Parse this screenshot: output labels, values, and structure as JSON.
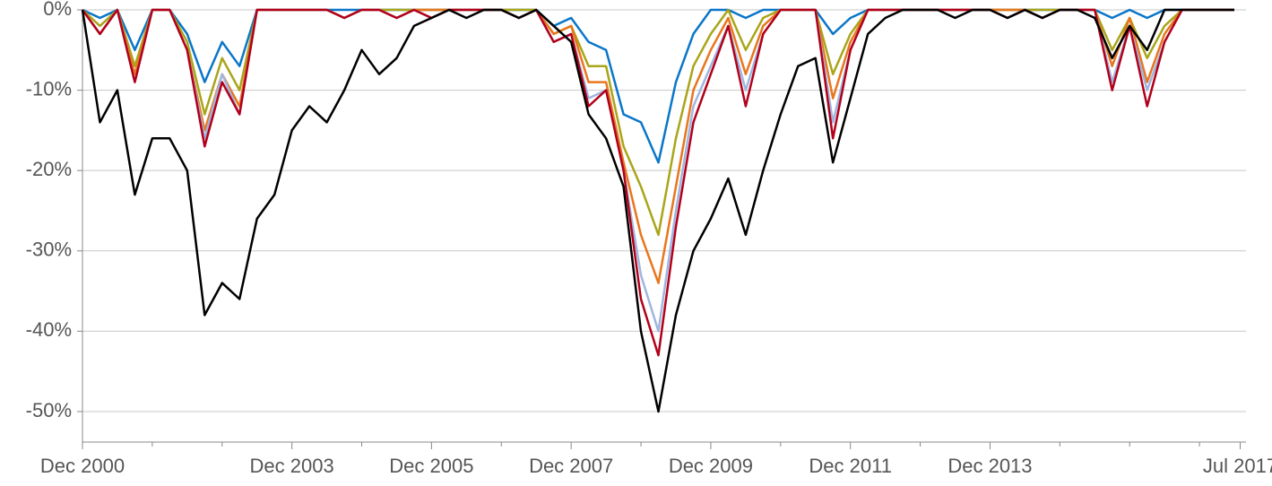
{
  "chart_data": {
    "type": "line",
    "x": [
      "2000-12",
      "2001-03",
      "2001-06",
      "2001-09",
      "2001-12",
      "2002-03",
      "2002-06",
      "2002-09",
      "2002-12",
      "2003-03",
      "2003-06",
      "2003-09",
      "2003-12",
      "2004-03",
      "2004-06",
      "2004-09",
      "2004-12",
      "2005-03",
      "2005-06",
      "2005-09",
      "2005-12",
      "2006-03",
      "2006-06",
      "2006-09",
      "2006-12",
      "2007-03",
      "2007-06",
      "2007-09",
      "2007-12",
      "2008-03",
      "2008-06",
      "2008-09",
      "2008-12",
      "2009-03",
      "2009-06",
      "2009-09",
      "2009-12",
      "2010-03",
      "2010-06",
      "2010-09",
      "2010-12",
      "2011-03",
      "2011-06",
      "2011-09",
      "2011-12",
      "2012-03",
      "2012-06",
      "2012-09",
      "2012-12",
      "2013-03",
      "2013-06",
      "2013-09",
      "2013-12",
      "2014-03",
      "2014-06",
      "2014-09",
      "2014-12",
      "2015-03",
      "2015-06",
      "2015-09",
      "2015-12",
      "2016-03",
      "2016-06",
      "2016-09",
      "2016-12",
      "2017-03",
      "2017-06"
    ],
    "series": [
      {
        "color": "#0a76c8",
        "values": [
          0,
          -1,
          0,
          -5,
          0,
          0,
          -3,
          -9,
          -4,
          -7,
          0,
          0,
          0,
          0,
          0,
          0,
          0,
          0,
          0,
          0,
          0,
          0,
          0,
          0,
          0,
          0,
          0,
          -2,
          -1,
          -4,
          -5,
          -13,
          -14,
          -19,
          -9,
          -3,
          0,
          0,
          -1,
          0,
          0,
          0,
          0,
          -3,
          -1,
          0,
          0,
          0,
          0,
          0,
          0,
          0,
          0,
          0,
          0,
          0,
          0,
          0,
          0,
          -1,
          0,
          -1,
          0,
          0,
          0,
          0,
          0
        ]
      },
      {
        "color": "#a9a51a",
        "values": [
          0,
          -2,
          0,
          -7,
          0,
          0,
          -4,
          -13,
          -6,
          -10,
          0,
          0,
          0,
          0,
          0,
          -1,
          0,
          0,
          0,
          0,
          0,
          0,
          0,
          0,
          0,
          0,
          0,
          -3,
          -2,
          -7,
          -7,
          -17,
          -22,
          -28,
          -16,
          -7,
          -3,
          0,
          -5,
          -1,
          0,
          0,
          0,
          -8,
          -3,
          0,
          0,
          0,
          0,
          0,
          0,
          0,
          0,
          0,
          0,
          0,
          0,
          0,
          0,
          -5,
          -1,
          -6,
          -2,
          0,
          0,
          0,
          0
        ]
      },
      {
        "color": "#e8761e",
        "values": [
          0,
          -3,
          0,
          -8,
          0,
          0,
          -5,
          -15,
          -8,
          -12,
          0,
          0,
          0,
          0,
          0,
          -1,
          0,
          0,
          -1,
          0,
          0,
          0,
          0,
          0,
          0,
          -1,
          0,
          -3,
          -2,
          -9,
          -9,
          -19,
          -28,
          -34,
          -22,
          -10,
          -5,
          -1,
          -8,
          -2,
          0,
          0,
          0,
          -11,
          -4,
          0,
          0,
          0,
          0,
          0,
          0,
          0,
          0,
          0,
          0,
          -1,
          0,
          0,
          0,
          -7,
          -1,
          -9,
          -3,
          0,
          0,
          0,
          0
        ]
      },
      {
        "color": "#9fb6e0",
        "values": [
          0,
          -3,
          0,
          -9,
          0,
          0,
          -5,
          -16,
          -8,
          -13,
          0,
          0,
          0,
          0,
          0,
          -1,
          0,
          0,
          -1,
          0,
          -1,
          0,
          0,
          0,
          0,
          -1,
          0,
          -4,
          -3,
          -11,
          -10,
          -20,
          -33,
          -40,
          -25,
          -12,
          -7,
          -2,
          -10,
          -3,
          0,
          0,
          0,
          -14,
          -5,
          0,
          0,
          0,
          0,
          0,
          0,
          0,
          0,
          -1,
          0,
          -1,
          0,
          0,
          0,
          -9,
          -2,
          -10,
          -4,
          0,
          0,
          0,
          0
        ]
      },
      {
        "color": "#b2001a",
        "values": [
          0,
          -3,
          0,
          -9,
          0,
          0,
          -5,
          -17,
          -9,
          -13,
          0,
          0,
          0,
          0,
          0,
          -1,
          0,
          0,
          -1,
          0,
          -1,
          0,
          0,
          0,
          0,
          -1,
          0,
          -4,
          -3,
          -12,
          -10,
          -20,
          -36,
          -43,
          -27,
          -14,
          -8,
          -2,
          -12,
          -3,
          0,
          0,
          0,
          -16,
          -5,
          0,
          0,
          0,
          0,
          0,
          0,
          0,
          0,
          -1,
          0,
          -1,
          0,
          0,
          0,
          -10,
          -2,
          -12,
          -4,
          0,
          0,
          0,
          0
        ]
      },
      {
        "color": "#000000",
        "values": [
          0,
          -14,
          -10,
          -23,
          -16,
          -16,
          -20,
          -38,
          -34,
          -36,
          -26,
          -23,
          -15,
          -12,
          -14,
          -10,
          -5,
          -8,
          -6,
          -2,
          -1,
          0,
          -1,
          0,
          0,
          -1,
          0,
          -2,
          -4,
          -13,
          -16,
          -22,
          -40,
          -50,
          -38,
          -30,
          -26,
          -21,
          -28,
          -20,
          -13,
          -7,
          -6,
          -19,
          -11,
          -3,
          -1,
          0,
          0,
          0,
          -1,
          0,
          0,
          -1,
          0,
          -1,
          0,
          0,
          -1,
          -6,
          -2,
          -5,
          0,
          0,
          0,
          0,
          0
        ]
      }
    ],
    "xlim": [
      "2000-12",
      "2017-08"
    ],
    "xticks": [
      {
        "value": "2000-12",
        "label": "Dec 2000"
      },
      {
        "value": "2003-12",
        "label": "Dec 2003"
      },
      {
        "value": "2005-12",
        "label": "Dec 2005"
      },
      {
        "value": "2007-12",
        "label": "Dec 2007"
      },
      {
        "value": "2009-12",
        "label": "Dec 2009"
      },
      {
        "value": "2011-12",
        "label": "Dec 2011"
      },
      {
        "value": "2013-12",
        "label": "Dec 2013"
      },
      {
        "value": "2017-07",
        "label": "Jul 2017"
      }
    ],
    "xminorticks": [
      "2001-12",
      "2002-12",
      "2004-12",
      "2006-12",
      "2008-12",
      "2010-12",
      "2012-12",
      "2014-12",
      "2015-12",
      "2016-12"
    ],
    "ylim": [
      -53.8,
      0
    ],
    "yticks": [
      {
        "value": 0,
        "label": "0%"
      },
      {
        "value": -10,
        "label": "-10%"
      },
      {
        "value": -20,
        "label": "-20%"
      },
      {
        "value": -30,
        "label": "-30%"
      },
      {
        "value": -40,
        "label": "-40%"
      },
      {
        "value": -50,
        "label": "-50%"
      }
    ],
    "grid": true
  }
}
